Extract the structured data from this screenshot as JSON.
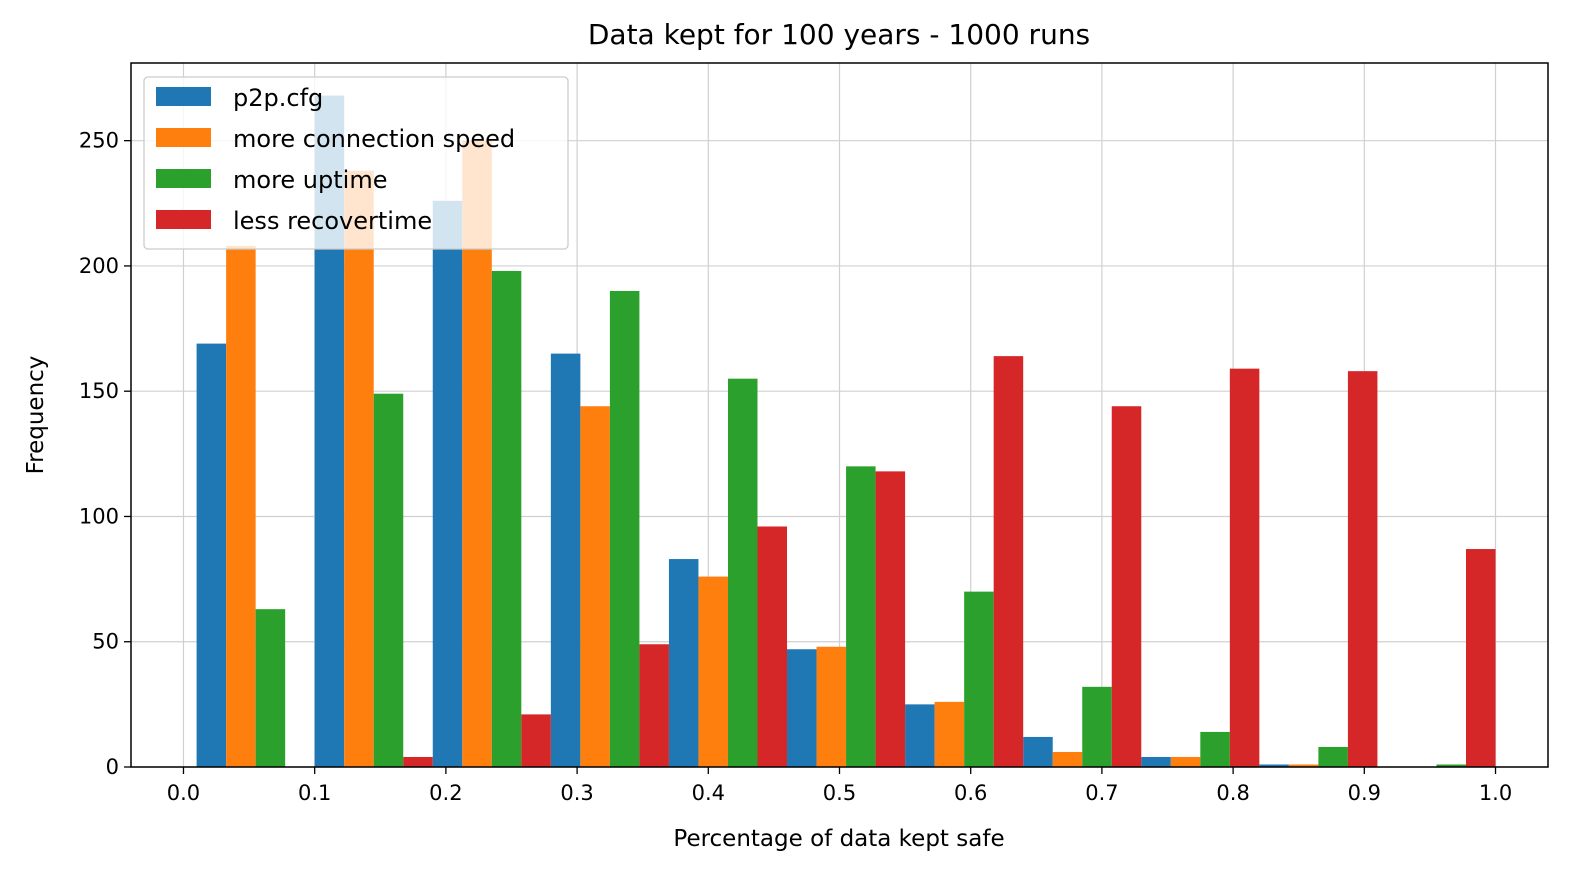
{
  "chart_data": {
    "type": "bar",
    "title": "Data kept for 100 years - 1000 runs",
    "xlabel": "Percentage of data kept safe",
    "ylabel": "Frequency",
    "xlim": [
      -0.04,
      1.04
    ],
    "ylim": [
      0,
      281
    ],
    "xticks": [
      "0.0",
      "0.1",
      "0.2",
      "0.3",
      "0.4",
      "0.5",
      "0.6",
      "0.7",
      "0.8",
      "0.9",
      "1.0"
    ],
    "yticks": [
      "0",
      "50",
      "100",
      "150",
      "200",
      "250"
    ],
    "grid": true,
    "legend_position": "upper-left",
    "bin_edges": [
      0.01,
      0.1,
      0.19,
      0.28,
      0.37,
      0.46,
      0.55,
      0.64,
      0.73,
      0.82,
      0.91,
      1.0
    ],
    "series": [
      {
        "name": "p2p.cfg",
        "color": "#1f77b4",
        "values": [
          169,
          268,
          226,
          165,
          83,
          47,
          25,
          12,
          4,
          1,
          0
        ]
      },
      {
        "name": "more connection speed",
        "color": "#ff7f0e",
        "values": [
          208,
          238,
          250,
          144,
          76,
          48,
          26,
          6,
          4,
          1,
          0
        ]
      },
      {
        "name": "more uptime",
        "color": "#2ca02c",
        "values": [
          63,
          149,
          198,
          190,
          155,
          120,
          70,
          32,
          14,
          8,
          1
        ]
      },
      {
        "name": "less recovertime",
        "color": "#d62728",
        "values": [
          0,
          4,
          21,
          49,
          96,
          118,
          164,
          144,
          159,
          158,
          87
        ]
      }
    ]
  }
}
